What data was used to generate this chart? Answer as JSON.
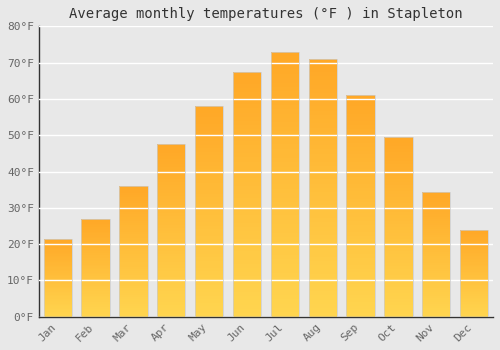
{
  "title": "Average monthly temperatures (°F ) in Stapleton",
  "months": [
    "Jan",
    "Feb",
    "Mar",
    "Apr",
    "May",
    "Jun",
    "Jul",
    "Aug",
    "Sep",
    "Oct",
    "Nov",
    "Dec"
  ],
  "values": [
    21.5,
    27,
    36,
    47.5,
    58,
    67.5,
    73,
    71,
    61,
    49.5,
    34.5,
    24
  ],
  "ylim": [
    0,
    80
  ],
  "yticks": [
    0,
    10,
    20,
    30,
    40,
    50,
    60,
    70,
    80
  ],
  "ytick_labels": [
    "0°F",
    "10°F",
    "20°F",
    "30°F",
    "40°F",
    "50°F",
    "60°F",
    "70°F",
    "80°F"
  ],
  "background_color": "#e8e8e8",
  "plot_bg_color": "#e8e8e8",
  "grid_color": "#ffffff",
  "bar_color_bottom": "#FFD54F",
  "bar_color_top": "#FFA726",
  "bar_edge_color": "#cccccc",
  "title_fontsize": 10,
  "tick_fontsize": 8,
  "font_family": "monospace",
  "title_color": "#333333",
  "tick_color": "#666666",
  "bar_width": 0.75,
  "n_gradient_steps": 60
}
